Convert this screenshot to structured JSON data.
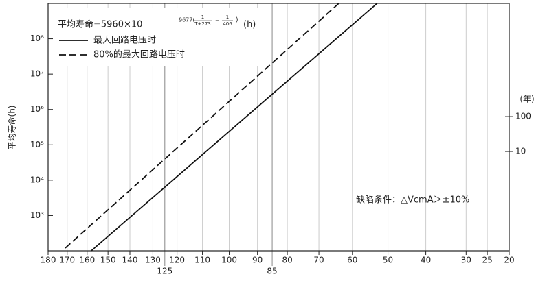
{
  "chart_data": {
    "type": "line",
    "y_label": "平均寿命(h)",
    "y2_label": "(年)",
    "formula": {
      "prefix": "平均寿命=5960×10",
      "exponent": "9677(",
      "num1": "1",
      "den1": "T+273",
      "minus": "−",
      "num2": "1",
      "den2": "406",
      "close": ")",
      "unit": "(h)"
    },
    "annotation": "缺陷条件：△VcmA＞±10%",
    "x_scale": "reciprocal-kelvin",
    "y_scale": "log",
    "xlim": [
      180,
      20
    ],
    "xticks": [
      180,
      170,
      160,
      150,
      140,
      130,
      120,
      110,
      100,
      90,
      80,
      70,
      60,
      50,
      40,
      30,
      25,
      20
    ],
    "xticks_secondary": [
      125,
      85
    ],
    "ylim": [
      100,
      1000000000
    ],
    "yticks": [
      {
        "value": 1000,
        "label": "10³"
      },
      {
        "value": 10000,
        "label": "10⁴"
      },
      {
        "value": 100000,
        "label": "10⁵"
      },
      {
        "value": 1000000,
        "label": "10⁶"
      },
      {
        "value": 10000000,
        "label": "10⁷"
      },
      {
        "value": 100000000,
        "label": "10⁸"
      }
    ],
    "y2lim": [
      0.0144,
      172000
    ],
    "y2ticks": [
      100,
      10
    ],
    "grid": true,
    "series": [
      {
        "name": "最大回路电压时",
        "color": "#111111",
        "dash": false,
        "x": [
          158,
          53
        ],
        "values": [
          100,
          1000000000
        ]
      },
      {
        "name": "80%的最大回路电压时",
        "color": "#111111",
        "dash": true,
        "x": [
          171,
          64
        ],
        "values": [
          120,
          1000000000
        ]
      }
    ]
  }
}
